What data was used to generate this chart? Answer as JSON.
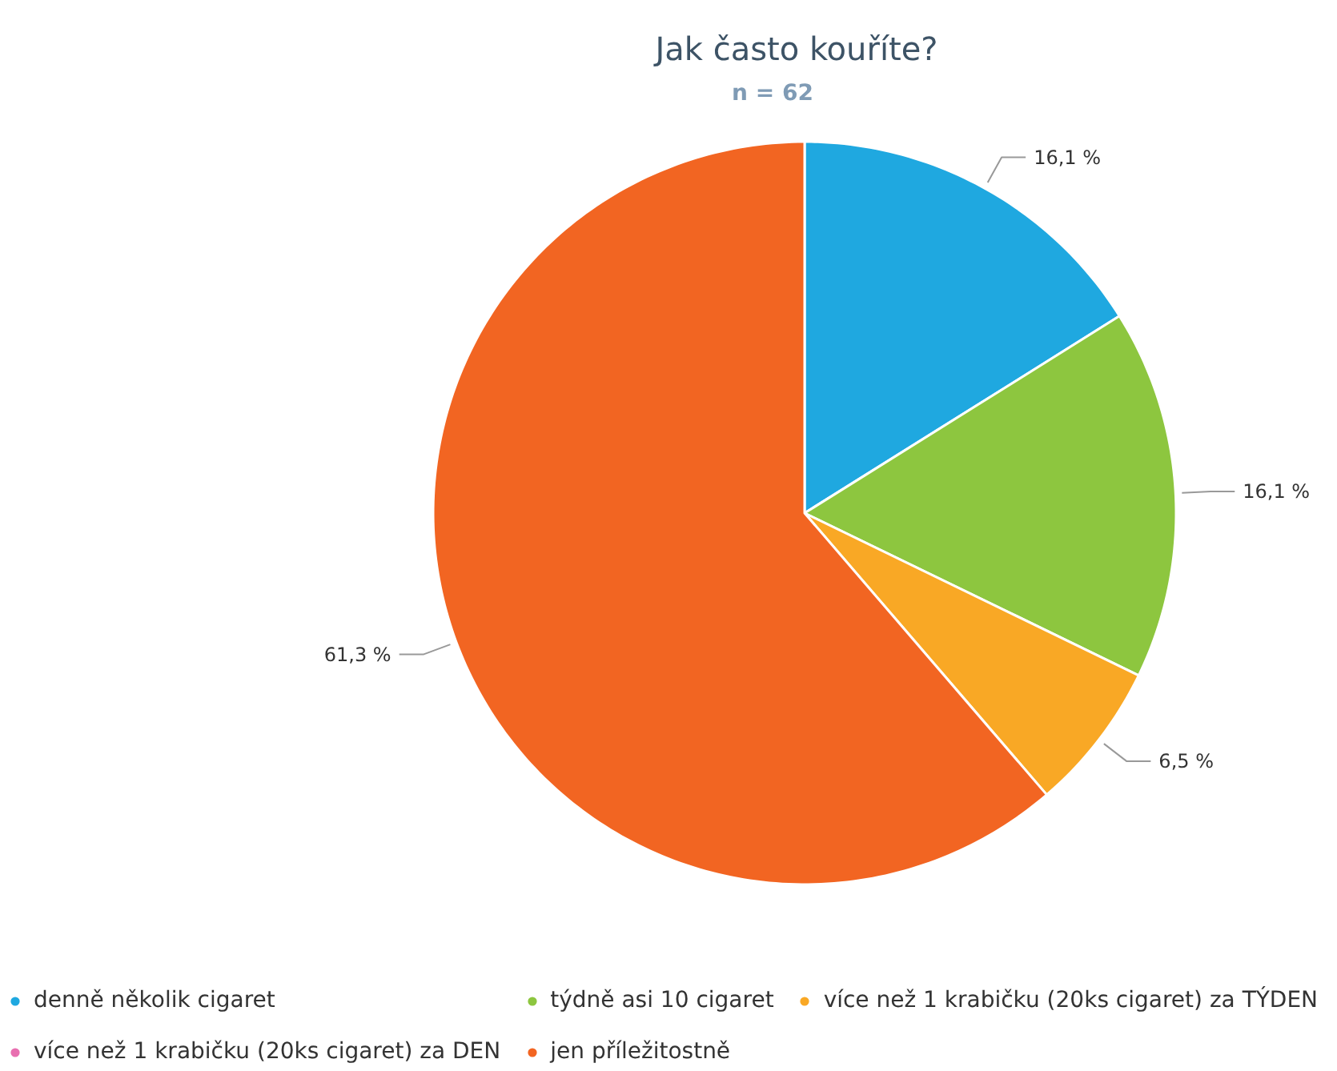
{
  "chart_data": {
    "type": "pie",
    "title": "Jak často kouříte?",
    "subtitle": "n = 62",
    "categories": [
      "denně několik cigaret",
      "týdně asi 10 cigaret",
      "více než 1 krabičku (20ks cigaret) za TÝDEN",
      "více než 1 krabičku (20ks cigaret) za DEN",
      "jen příležitostně"
    ],
    "values": [
      16.1,
      16.1,
      6.5,
      0,
      61.3
    ],
    "value_labels": [
      "16,1 %",
      "16,1 %",
      "6,5 %",
      null,
      "61,3 %"
    ],
    "colors": [
      "#1fa8e0",
      "#8dc63f",
      "#f9a825",
      "#e86fb0",
      "#f26522"
    ],
    "legend": "bottom"
  }
}
